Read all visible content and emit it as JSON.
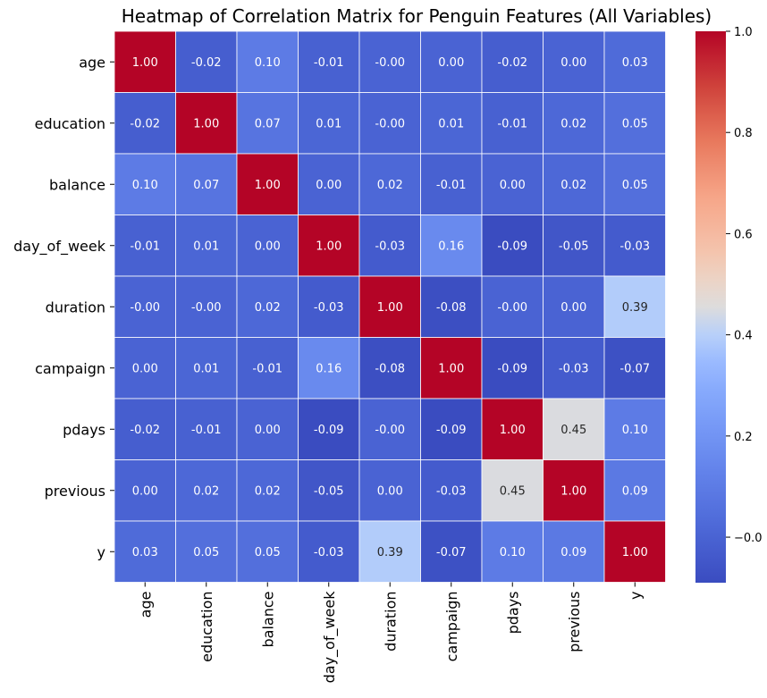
{
  "chart_data": {
    "type": "heatmap",
    "title": "Heatmap of Correlation Matrix for Penguin Features (All Variables)",
    "xlabel": "",
    "ylabel": "",
    "variables": [
      "age",
      "education",
      "balance",
      "day_of_week",
      "duration",
      "campaign",
      "pdays",
      "previous",
      "y"
    ],
    "matrix": [
      [
        1.0,
        -0.02,
        0.1,
        -0.01,
        -0.0,
        0.0,
        -0.02,
        0.0,
        0.03
      ],
      [
        -0.02,
        1.0,
        0.07,
        0.01,
        -0.0,
        0.01,
        -0.01,
        0.02,
        0.05
      ],
      [
        0.1,
        0.07,
        1.0,
        0.0,
        0.02,
        -0.01,
        0.0,
        0.02,
        0.05
      ],
      [
        -0.01,
        0.01,
        0.0,
        1.0,
        -0.03,
        0.16,
        -0.09,
        -0.05,
        -0.03
      ],
      [
        -0.0,
        -0.0,
        0.02,
        -0.03,
        1.0,
        -0.08,
        -0.0,
        0.0,
        0.39
      ],
      [
        0.0,
        0.01,
        -0.01,
        0.16,
        -0.08,
        1.0,
        -0.09,
        -0.03,
        -0.07
      ],
      [
        -0.02,
        -0.01,
        0.0,
        -0.09,
        -0.0,
        -0.09,
        1.0,
        0.45,
        0.1
      ],
      [
        0.0,
        0.02,
        0.02,
        -0.05,
        0.0,
        -0.03,
        0.45,
        1.0,
        0.09
      ],
      [
        0.03,
        0.05,
        0.05,
        -0.03,
        0.39,
        -0.07,
        0.1,
        0.09,
        1.0
      ]
    ],
    "annotation_labels": [
      [
        "1.00",
        "-0.02",
        "0.10",
        "-0.01",
        "-0.00",
        "0.00",
        "-0.02",
        "0.00",
        "0.03"
      ],
      [
        "-0.02",
        "1.00",
        "0.07",
        "0.01",
        "-0.00",
        "0.01",
        "-0.01",
        "0.02",
        "0.05"
      ],
      [
        "0.10",
        "0.07",
        "1.00",
        "0.00",
        "0.02",
        "-0.01",
        "0.00",
        "0.02",
        "0.05"
      ],
      [
        "-0.01",
        "0.01",
        "0.00",
        "1.00",
        "-0.03",
        "0.16",
        "-0.09",
        "-0.05",
        "-0.03"
      ],
      [
        "-0.00",
        "-0.00",
        "0.02",
        "-0.03",
        "1.00",
        "-0.08",
        "-0.00",
        "0.00",
        "0.39"
      ],
      [
        "0.00",
        "0.01",
        "-0.01",
        "0.16",
        "-0.08",
        "1.00",
        "-0.09",
        "-0.03",
        "-0.07"
      ],
      [
        "-0.02",
        "-0.01",
        "0.00",
        "-0.09",
        "-0.00",
        "-0.09",
        "1.00",
        "0.45",
        "0.10"
      ],
      [
        "0.00",
        "0.02",
        "0.02",
        "-0.05",
        "0.00",
        "-0.03",
        "0.45",
        "1.00",
        "0.09"
      ],
      [
        "0.03",
        "0.05",
        "0.05",
        "-0.03",
        "0.39",
        "-0.07",
        "0.10",
        "0.09",
        "1.00"
      ]
    ],
    "colormap": "coolwarm",
    "colorbar": {
      "range": [
        -0.09,
        1.0
      ],
      "ticks": [
        -0.0,
        0.2,
        0.4,
        0.6,
        0.8,
        1.0
      ],
      "tick_labels": [
        "−0.0",
        "0.2",
        "0.4",
        "0.6",
        "0.8",
        "1.0"
      ]
    },
    "grid": false,
    "cell_border_color": "#ffffff"
  }
}
